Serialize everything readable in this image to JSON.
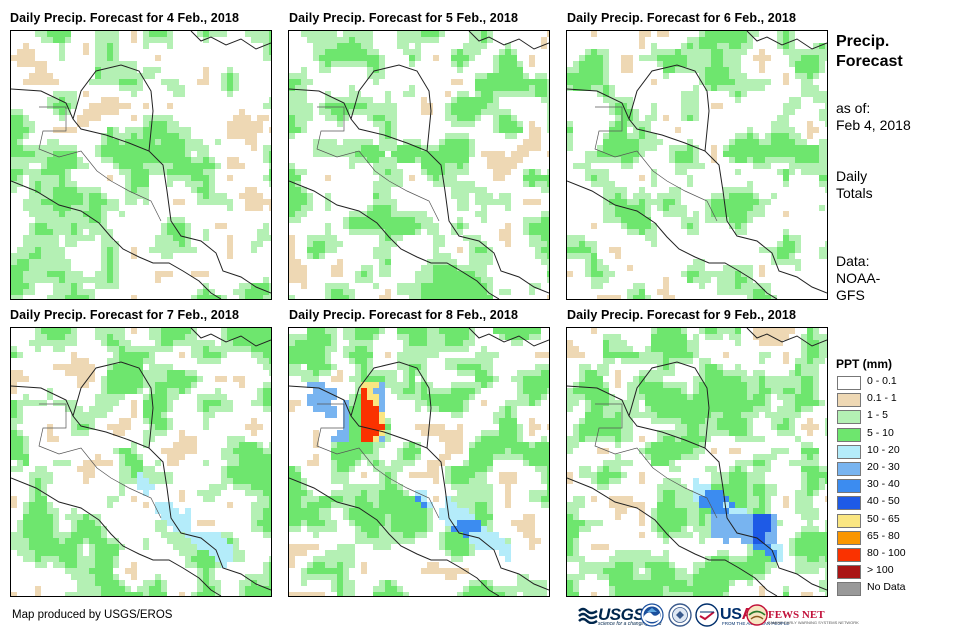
{
  "panels": [
    {
      "title": "Daily Precip. Forecast for 4 Feb., 2018",
      "day": 4
    },
    {
      "title": "Daily Precip. Forecast for 5 Feb., 2018",
      "day": 5
    },
    {
      "title": "Daily Precip. Forecast for 6 Feb., 2018",
      "day": 6
    },
    {
      "title": "Daily Precip. Forecast for 7 Feb., 2018",
      "day": 7
    },
    {
      "title": "Daily Precip. Forecast for 8 Feb., 2018",
      "day": 8
    },
    {
      "title": "Daily Precip. Forecast for 9 Feb., 2018",
      "day": 9
    }
  ],
  "side": {
    "title_line1": "Precip.",
    "title_line2": "Forecast",
    "asof_line1": "as of:",
    "asof_line2": "Feb 4, 2018",
    "totals_line1": "Daily",
    "totals_line2": "Totals",
    "data_line1": "Data:",
    "data_line2": "NOAA-",
    "data_line3": "GFS"
  },
  "legend": {
    "title": "PPT (mm)",
    "items": [
      {
        "label": "0 - 0.1",
        "color": "#ffffff"
      },
      {
        "label": "0.1 - 1",
        "color": "#eed8b4"
      },
      {
        "label": "1 - 5",
        "color": "#b4f0b4"
      },
      {
        "label": "5 - 10",
        "color": "#6ee66e"
      },
      {
        "label": "10 - 20",
        "color": "#b4ecfa"
      },
      {
        "label": "20 - 30",
        "color": "#78b4f0"
      },
      {
        "label": "30 - 40",
        "color": "#3c8cf0"
      },
      {
        "label": "40 - 50",
        "color": "#1e5ae6"
      },
      {
        "label": "50 - 65",
        "color": "#fae682"
      },
      {
        "label": "65 - 80",
        "color": "#fa9600"
      },
      {
        "label": "80 - 100",
        "color": "#fa3200"
      },
      {
        "label": "> 100",
        "color": "#aa1414"
      },
      {
        "label": "No Data",
        "color": "#999999"
      }
    ]
  },
  "credit": "Map produced by USGS/EROS",
  "logos": {
    "usgs": "USGS",
    "usgs_tagline": "science for a changing world",
    "usaid_a": "US",
    "usaid_b": "AID",
    "usaid_tagline": "FROM THE AMERICAN PEOPLE",
    "fews": "FEWS NET",
    "fews_tagline": "FAMINE EARLY WARNING SYSTEMS NETWORK"
  }
}
